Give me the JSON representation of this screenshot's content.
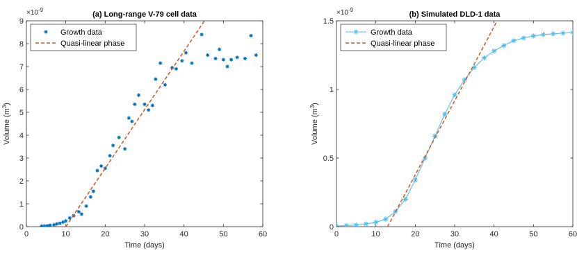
{
  "chart_data": [
    {
      "type": "scatter",
      "title": "(a) Long-range V-79 cell data",
      "xlabel": "Time (days)",
      "ylabel": "Volume (m",
      "ylabel_sup": "3",
      "ylabel_end": ")",
      "exponent_base": "×10",
      "exponent": "-9",
      "xlim": [
        0,
        60
      ],
      "ylim": [
        0,
        9
      ],
      "xticks": [
        "0",
        "10",
        "20",
        "30",
        "40",
        "50",
        "60"
      ],
      "yticks": [
        "0",
        "1",
        "2",
        "3",
        "4",
        "5",
        "6",
        "7",
        "8",
        "9"
      ],
      "legend_position": "top-left",
      "series": [
        {
          "name": "Growth data",
          "style": "markers",
          "color": "#0072BD",
          "x": [
            3.8,
            4.5,
            5.3,
            6.0,
            7.0,
            7.7,
            8.5,
            9.3,
            10.0,
            11.0,
            12.0,
            13.3,
            14.0,
            15.2,
            16.3,
            17.0,
            18.0,
            19.0,
            20.0,
            21.2,
            22.0,
            23.5,
            25.0,
            26.0,
            26.8,
            27.5,
            28.5,
            30.0,
            31.0,
            32.0,
            32.8,
            34.0,
            35.2,
            37.0,
            38.0,
            39.5,
            40.5,
            42.0,
            44.5,
            46.0,
            48.0,
            49.0,
            50.0,
            51.0,
            52.0,
            53.5,
            55.5,
            57.0,
            58.3
          ],
          "y": [
            0.02,
            0.03,
            0.04,
            0.06,
            0.08,
            0.12,
            0.15,
            0.2,
            0.25,
            0.38,
            0.48,
            0.65,
            0.55,
            0.9,
            1.3,
            1.55,
            2.45,
            2.65,
            2.55,
            3.1,
            3.55,
            3.9,
            3.4,
            4.75,
            4.6,
            5.35,
            5.75,
            5.35,
            5.1,
            5.3,
            6.45,
            7.15,
            6.2,
            6.95,
            6.9,
            7.25,
            7.6,
            7.15,
            8.4,
            7.5,
            7.35,
            7.75,
            7.3,
            7.0,
            7.3,
            7.4,
            7.35,
            8.35,
            7.5
          ]
        },
        {
          "name": "Quasi-linear phase",
          "style": "dashed-line",
          "color": "#D95319",
          "x": [
            10,
            45.2
          ],
          "y": [
            0,
            9
          ]
        }
      ]
    },
    {
      "type": "line",
      "title": "(b) Simulated DLD-1 data",
      "xlabel": "Time (days)",
      "ylabel": "Volume (m",
      "ylabel_sup": "3",
      "ylabel_end": ")",
      "exponent_base": "×10",
      "exponent": "-9",
      "xlim": [
        0,
        60
      ],
      "ylim": [
        0,
        1.5
      ],
      "xticks": [
        "0",
        "10",
        "20",
        "30",
        "40",
        "50",
        "60"
      ],
      "yticks": [
        "0",
        "0.5",
        "1",
        "1.5"
      ],
      "legend_position": "top-left",
      "series": [
        {
          "name": "Growth data",
          "style": "line-star",
          "color": "#4DBEEE",
          "x": [
            0,
            2.5,
            5,
            7.5,
            10,
            12.5,
            15,
            17.5,
            20,
            22.5,
            25,
            27.5,
            30,
            32.5,
            35,
            37.5,
            40,
            42.5,
            45,
            47.5,
            50,
            52.5,
            55,
            57.5,
            60
          ],
          "y": [
            0.005,
            0.008,
            0.012,
            0.02,
            0.032,
            0.055,
            0.11,
            0.2,
            0.34,
            0.5,
            0.66,
            0.82,
            0.96,
            1.07,
            1.16,
            1.23,
            1.28,
            1.32,
            1.355,
            1.375,
            1.39,
            1.4,
            1.405,
            1.41,
            1.415
          ]
        },
        {
          "name": "Quasi-linear phase",
          "style": "dashed-line",
          "color": "#D95319",
          "x": [
            13.0,
            40.8
          ],
          "y": [
            0,
            1.5
          ]
        }
      ]
    }
  ]
}
